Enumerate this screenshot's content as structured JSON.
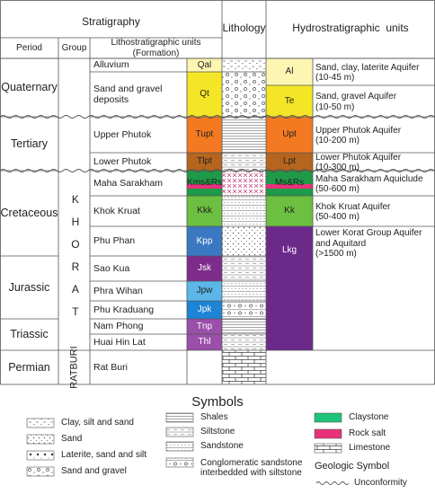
{
  "header": {
    "stratigraphy": "Stratigraphy",
    "lithology": "Lithology",
    "hydrostratigraphy": "Hydrostratigraphic  units",
    "period": "Period",
    "group": "Group",
    "formation": [
      "Lithostratigraphic units",
      "(Formation)"
    ]
  },
  "periods": [
    "Quaternary",
    "Tertiary",
    "Cretaceous",
    "Jurassic",
    "Triassic",
    "Permian"
  ],
  "groups": [
    "KHORAT",
    "RATBURI"
  ],
  "formations": [
    {
      "name": [
        "Alluvium"
      ],
      "symbol": "Qal"
    },
    {
      "name": [
        "Sand and gravel",
        "deposits"
      ],
      "symbol": "Qt"
    },
    {
      "name": [
        "Upper Phutok"
      ],
      "symbol": "Tupt"
    },
    {
      "name": [
        "Lower Phutok"
      ],
      "symbol": "Tlpt"
    },
    {
      "name": [
        "Maha Sarakham"
      ],
      "symbol": "Kms&Rs"
    },
    {
      "name": [
        "Khok Kruat"
      ],
      "symbol": "Kkk"
    },
    {
      "name": [
        "Phu Phan"
      ],
      "symbol": "Kpp"
    },
    {
      "name": [
        "Sao Kua"
      ],
      "symbol": "Jsk"
    },
    {
      "name": [
        "Phra Wihan"
      ],
      "symbol": "Jpw"
    },
    {
      "name": [
        "Phu Kraduang"
      ],
      "symbol": "Jpk"
    },
    {
      "name": [
        "Nam Phong"
      ],
      "symbol": "Tnp"
    },
    {
      "name": [
        "Huai Hin Lat"
      ],
      "symbol": "Thl"
    },
    {
      "name": [
        "Rat Buri"
      ],
      "symbol": null
    }
  ],
  "hydro_units": [
    {
      "code": "Al",
      "description": [
        "Sand, clay, laterite Aquifer",
        "(10-45 m)"
      ]
    },
    {
      "code": "Te",
      "description": [
        "Sand, gravel Aquifer",
        "(10-50 m)"
      ]
    },
    {
      "code": "Upt",
      "description": [
        "Upper Phutok Aquifer",
        "(10-200 m)"
      ]
    },
    {
      "code": "Lpt",
      "description": [
        "Lower Phutok Aquifer",
        "(10-300 m)"
      ]
    },
    {
      "code": "Ms&Rs",
      "description": [
        "Maha Sarakham Aquiclude",
        "(50-600 m)"
      ]
    },
    {
      "code": "Kk",
      "description": [
        "Khok Kruat Aquifer",
        "(50-400 m)"
      ]
    },
    {
      "code": "Lkg",
      "description": [
        "Lower Korat Group Aquifer",
        "and Aquitard",
        "(>1500 m)"
      ]
    }
  ],
  "legend": {
    "title": "Symbols",
    "items": [
      "Clay, silt and sand",
      "Sand",
      "Laterite, sand and silt",
      "Sand and gravel",
      "Shales",
      "Siltstone",
      "Sandstone",
      "Conglomeratic sandstone interbedded with siltstone",
      "Claystone",
      "Rock salt",
      "Limestone"
    ],
    "geologic_symbol": "Geologic Symbol",
    "unconformity": "Unconformity"
  }
}
